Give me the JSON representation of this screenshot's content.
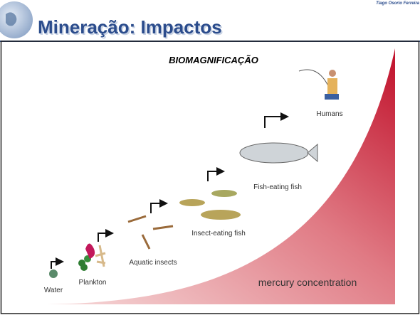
{
  "header": {
    "title": "Mineração: Impactos",
    "author": "Tiago Osorio Ferreira"
  },
  "slide": {
    "subtitle": "BIOMAGNIFICAÇÃO"
  },
  "diagram": {
    "stages": [
      "Water",
      "Plankton",
      "Aquatic insects",
      "Insect-eating fish",
      "Fish-eating fish",
      "Humans"
    ],
    "gradient_label": "mercury concentration"
  }
}
